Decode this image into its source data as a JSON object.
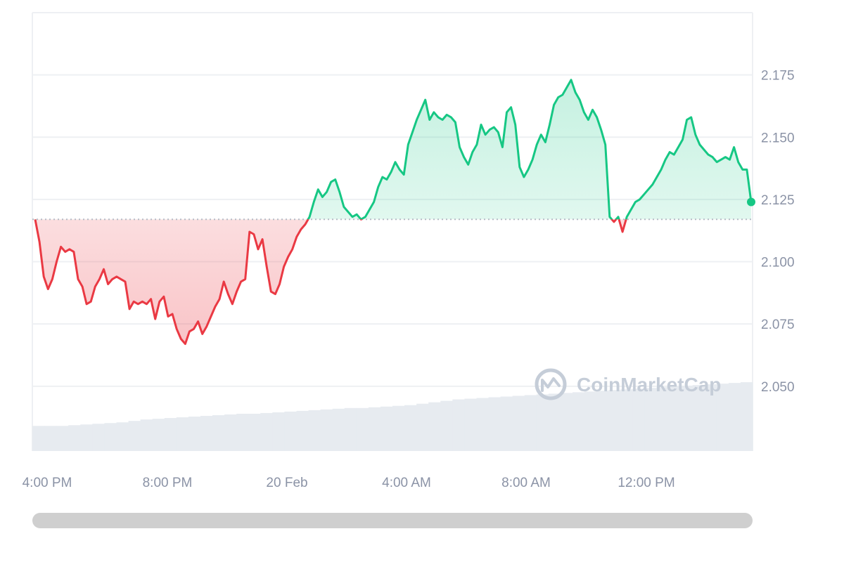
{
  "watermark": "CoinMarketCap",
  "colors": {
    "up": "#16c784",
    "down": "#ea3943",
    "volume": "#e7ebf0",
    "axis_text": "#8b93a6",
    "grid": "#eef0f3",
    "baseline": "#b6bcc6",
    "scrollbar": "#cfcfcf"
  },
  "chart_data": {
    "type": "line",
    "title": "",
    "xlabel": "",
    "ylabel": "",
    "x_tick_labels": [
      "4:00 PM",
      "8:00 PM",
      "20 Feb",
      "4:00 AM",
      "8:00 AM",
      "12:00 PM"
    ],
    "y_tick_labels": [
      "2.175",
      "2.150",
      "2.125",
      "2.100",
      "2.075",
      "2.050"
    ],
    "ylim": [
      2.024,
      2.2
    ],
    "baseline": 2.117,
    "last_value": 2.124,
    "grid": true,
    "series": [
      {
        "values": [
          2.117,
          2.108,
          2.094,
          2.089,
          2.093,
          2.1,
          2.106,
          2.104,
          2.105,
          2.104,
          2.093,
          2.09,
          2.083,
          2.084,
          2.09,
          2.093,
          2.097,
          2.091,
          2.093,
          2.094,
          2.093,
          2.092,
          2.081,
          2.084,
          2.083,
          2.084,
          2.083,
          2.085,
          2.077,
          2.084,
          2.086,
          2.078,
          2.079,
          2.073,
          2.069,
          2.067,
          2.072,
          2.073,
          2.076,
          2.071,
          2.074,
          2.078,
          2.082,
          2.085,
          2.092,
          2.087,
          2.083,
          2.088,
          2.092,
          2.093,
          2.112,
          2.111,
          2.105,
          2.109,
          2.098,
          2.088,
          2.087,
          2.091,
          2.098,
          2.102,
          2.105,
          2.11,
          2.113,
          2.115,
          2.118,
          2.124,
          2.129,
          2.126,
          2.128,
          2.132,
          2.133,
          2.128,
          2.122,
          2.12,
          2.118,
          2.119,
          2.117,
          2.118,
          2.121,
          2.124,
          2.13,
          2.134,
          2.133,
          2.136,
          2.14,
          2.137,
          2.135,
          2.147,
          2.152,
          2.157,
          2.161,
          2.165,
          2.157,
          2.16,
          2.158,
          2.157,
          2.159,
          2.158,
          2.156,
          2.146,
          2.142,
          2.139,
          2.144,
          2.147,
          2.155,
          2.151,
          2.153,
          2.154,
          2.152,
          2.146,
          2.16,
          2.162,
          2.155,
          2.138,
          2.134,
          2.137,
          2.141,
          2.147,
          2.151,
          2.148,
          2.155,
          2.163,
          2.166,
          2.167,
          2.17,
          2.173,
          2.168,
          2.165,
          2.16,
          2.157,
          2.161,
          2.158,
          2.153,
          2.147,
          2.118,
          2.116,
          2.118,
          2.112,
          2.118,
          2.121,
          2.124,
          2.125,
          2.127,
          2.129,
          2.131,
          2.134,
          2.137,
          2.141,
          2.144,
          2.143,
          2.146,
          2.149,
          2.157,
          2.158,
          2.151,
          2.147,
          2.145,
          2.143,
          2.142,
          2.14,
          2.141,
          2.142,
          2.141,
          2.146,
          2.14,
          2.137,
          2.137,
          2.124
        ]
      }
    ],
    "volume": [
      0.35,
      0.35,
      0.35,
      0.36,
      0.37,
      0.38,
      0.39,
      0.4,
      0.42,
      0.44,
      0.45,
      0.46,
      0.47,
      0.48,
      0.49,
      0.5,
      0.51,
      0.52,
      0.52,
      0.53,
      0.54,
      0.55,
      0.56,
      0.57,
      0.58,
      0.59,
      0.6,
      0.6,
      0.61,
      0.62,
      0.63,
      0.64,
      0.66,
      0.68,
      0.7,
      0.72,
      0.73,
      0.74,
      0.75,
      0.76,
      0.77,
      0.78,
      0.79,
      0.8,
      0.81,
      0.82,
      0.83,
      0.84,
      0.85,
      0.86,
      0.87,
      0.88,
      0.89,
      0.9,
      0.91,
      0.92,
      0.93,
      0.94,
      0.95,
      0.96
    ]
  }
}
